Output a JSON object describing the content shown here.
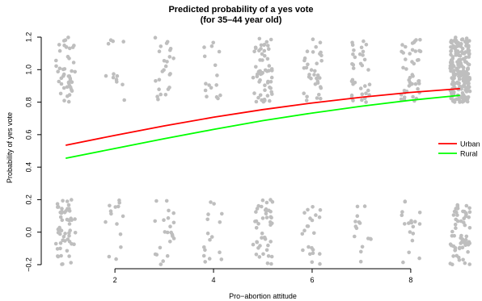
{
  "chart_data": {
    "type": "scatter",
    "title": "Predicted probability of a yes vote",
    "subtitle": "(for 35–44 year old)",
    "xlabel": "Pro−abortion attitude",
    "ylabel": "Probability of yes vote",
    "xlim": [
      0.62,
      9.38
    ],
    "ylim": [
      -0.22,
      1.22
    ],
    "x_ticks": [
      {
        "value": 2,
        "label": "2"
      },
      {
        "value": 4,
        "label": "4"
      },
      {
        "value": 6,
        "label": "6"
      },
      {
        "value": 8,
        "label": "8"
      }
    ],
    "y_ticks": [
      {
        "value": -0.2,
        "label": "−0.2"
      },
      {
        "value": 0.0,
        "label": "0.0"
      },
      {
        "value": 0.2,
        "label": "0.2"
      },
      {
        "value": 0.4,
        "label": "0.4"
      },
      {
        "value": 0.6,
        "label": "0.6"
      },
      {
        "value": 0.8,
        "label": "0.8"
      },
      {
        "value": 1.0,
        "label": "1.0"
      },
      {
        "value": 1.2,
        "label": "1.2"
      }
    ],
    "grid": false,
    "legend_position": "right",
    "jitter_points": {
      "color": "#bebebe",
      "x_positions": [
        1,
        2,
        3,
        4,
        5,
        6,
        7,
        8,
        9
      ],
      "yes_counts": [
        45,
        12,
        25,
        16,
        60,
        35,
        35,
        45,
        220
      ],
      "no_counts": [
        55,
        14,
        22,
        16,
        45,
        22,
        15,
        18,
        65
      ],
      "yes_center": 1.0,
      "no_center": 0.0,
      "jitter_x": 0.2,
      "jitter_y": 0.2
    },
    "series": [
      {
        "name": "Urban",
        "color": "#ff0000",
        "x": [
          1,
          2,
          3,
          4,
          5,
          6,
          7,
          8,
          9
        ],
        "y": [
          0.535,
          0.596,
          0.654,
          0.707,
          0.754,
          0.795,
          0.83,
          0.86,
          0.883
        ]
      },
      {
        "name": "Rural",
        "color": "#00ff00",
        "x": [
          1,
          2,
          3,
          4,
          5,
          6,
          7,
          8,
          9
        ],
        "y": [
          0.455,
          0.515,
          0.575,
          0.632,
          0.686,
          0.733,
          0.775,
          0.812,
          0.842
        ]
      }
    ]
  }
}
